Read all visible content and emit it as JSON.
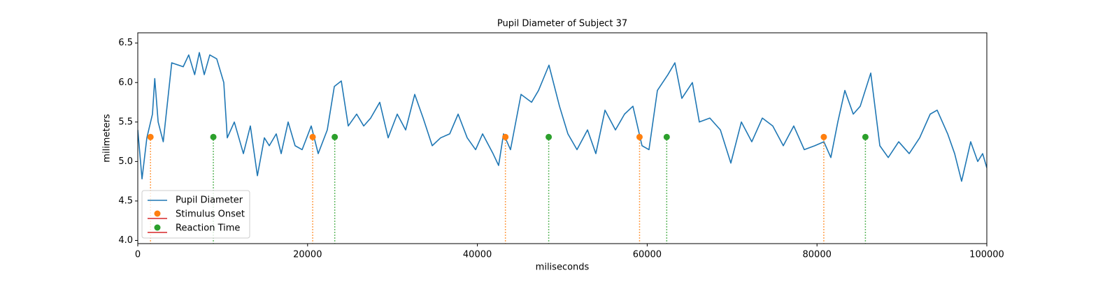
{
  "chart_data": {
    "type": "line",
    "title": "Pupil Diameter of Subject 37",
    "xlabel": "miliseconds",
    "ylabel": "milimeters",
    "xlim": [
      0,
      100000
    ],
    "ylim": [
      3.96,
      6.63
    ],
    "xticks": [
      0,
      20000,
      40000,
      60000,
      80000,
      100000
    ],
    "yticks": [
      {
        "value": 4.0,
        "label": "4.0"
      },
      4.5,
      {
        "value": 5.0,
        "label": "5.0"
      },
      5.5,
      {
        "value": 6.0,
        "label": "6.0"
      },
      6.5
    ],
    "legend": "lower left",
    "series": [
      {
        "name": "Pupil Diameter",
        "color": "#1f77b4",
        "x": [
          0,
          500,
          1070,
          1730,
          2000,
          2400,
          3000,
          4000,
          5350,
          6000,
          6700,
          7250,
          7830,
          8480,
          9300,
          10130,
          10540,
          11370,
          12440,
          13260,
          14090,
          14910,
          15490,
          16310,
          16890,
          17710,
          18530,
          19360,
          20430,
          21250,
          22320,
          23150,
          23970,
          24790,
          25780,
          26610,
          27430,
          28500,
          29490,
          30560,
          31550,
          32620,
          33610,
          34680,
          35670,
          36740,
          37730,
          38800,
          39790,
          40610,
          41840,
          42500,
          43080,
          43900,
          45140,
          46380,
          47200,
          48430,
          49670,
          50660,
          51730,
          52970,
          53950,
          55030,
          56260,
          57330,
          58320,
          59390,
          60210,
          61200,
          62440,
          63260,
          64080,
          65320,
          66140,
          67380,
          68620,
          69850,
          71090,
          72320,
          73560,
          74790,
          76030,
          77260,
          78500,
          79740,
          80810,
          81630,
          82450,
          83280,
          84270,
          85090,
          86330,
          87400,
          88390,
          89620,
          90860,
          92090,
          93330,
          94150,
          95390,
          96210,
          97030,
          98100,
          98930,
          99510,
          100000
        ],
        "values": [
          5.4,
          4.78,
          5.3,
          5.6,
          6.05,
          5.5,
          5.25,
          6.25,
          6.2,
          6.35,
          6.1,
          6.38,
          6.1,
          6.35,
          6.3,
          6.0,
          5.3,
          5.5,
          5.1,
          5.45,
          4.82,
          5.3,
          5.2,
          5.35,
          5.1,
          5.5,
          5.2,
          5.15,
          5.45,
          5.1,
          5.4,
          5.95,
          6.02,
          5.45,
          5.6,
          5.45,
          5.55,
          5.75,
          5.3,
          5.6,
          5.4,
          5.85,
          5.55,
          5.2,
          5.3,
          5.35,
          5.6,
          5.3,
          5.15,
          5.35,
          5.1,
          4.95,
          5.35,
          5.15,
          5.85,
          5.75,
          5.9,
          6.22,
          5.7,
          5.35,
          5.15,
          5.4,
          5.1,
          5.65,
          5.4,
          5.6,
          5.7,
          5.2,
          5.15,
          5.9,
          6.1,
          6.25,
          5.8,
          6.0,
          5.5,
          5.55,
          5.4,
          4.98,
          5.5,
          5.25,
          5.55,
          5.45,
          5.2,
          5.45,
          5.15,
          5.2,
          5.25,
          5.05,
          5.5,
          5.9,
          5.6,
          5.7,
          6.12,
          5.2,
          5.05,
          5.25,
          5.1,
          5.3,
          5.6,
          5.65,
          5.35,
          5.1,
          4.75,
          5.25,
          5.0,
          5.1,
          4.92
        ]
      },
      {
        "name": "Stimulus Onset",
        "type": "stem",
        "color": "#ff7f0e",
        "baseline_color": "#d62728",
        "x": [
          1500,
          20600,
          43300,
          59100,
          80800
        ],
        "values": [
          5.31,
          5.31,
          5.31,
          5.31,
          5.31
        ]
      },
      {
        "name": "Reaction Time",
        "type": "stem",
        "color": "#2ca02c",
        "baseline_color": "#d62728",
        "x": [
          8900,
          23200,
          48400,
          62300,
          85700
        ],
        "values": [
          5.31,
          5.31,
          5.31,
          5.31,
          5.31
        ]
      }
    ]
  }
}
